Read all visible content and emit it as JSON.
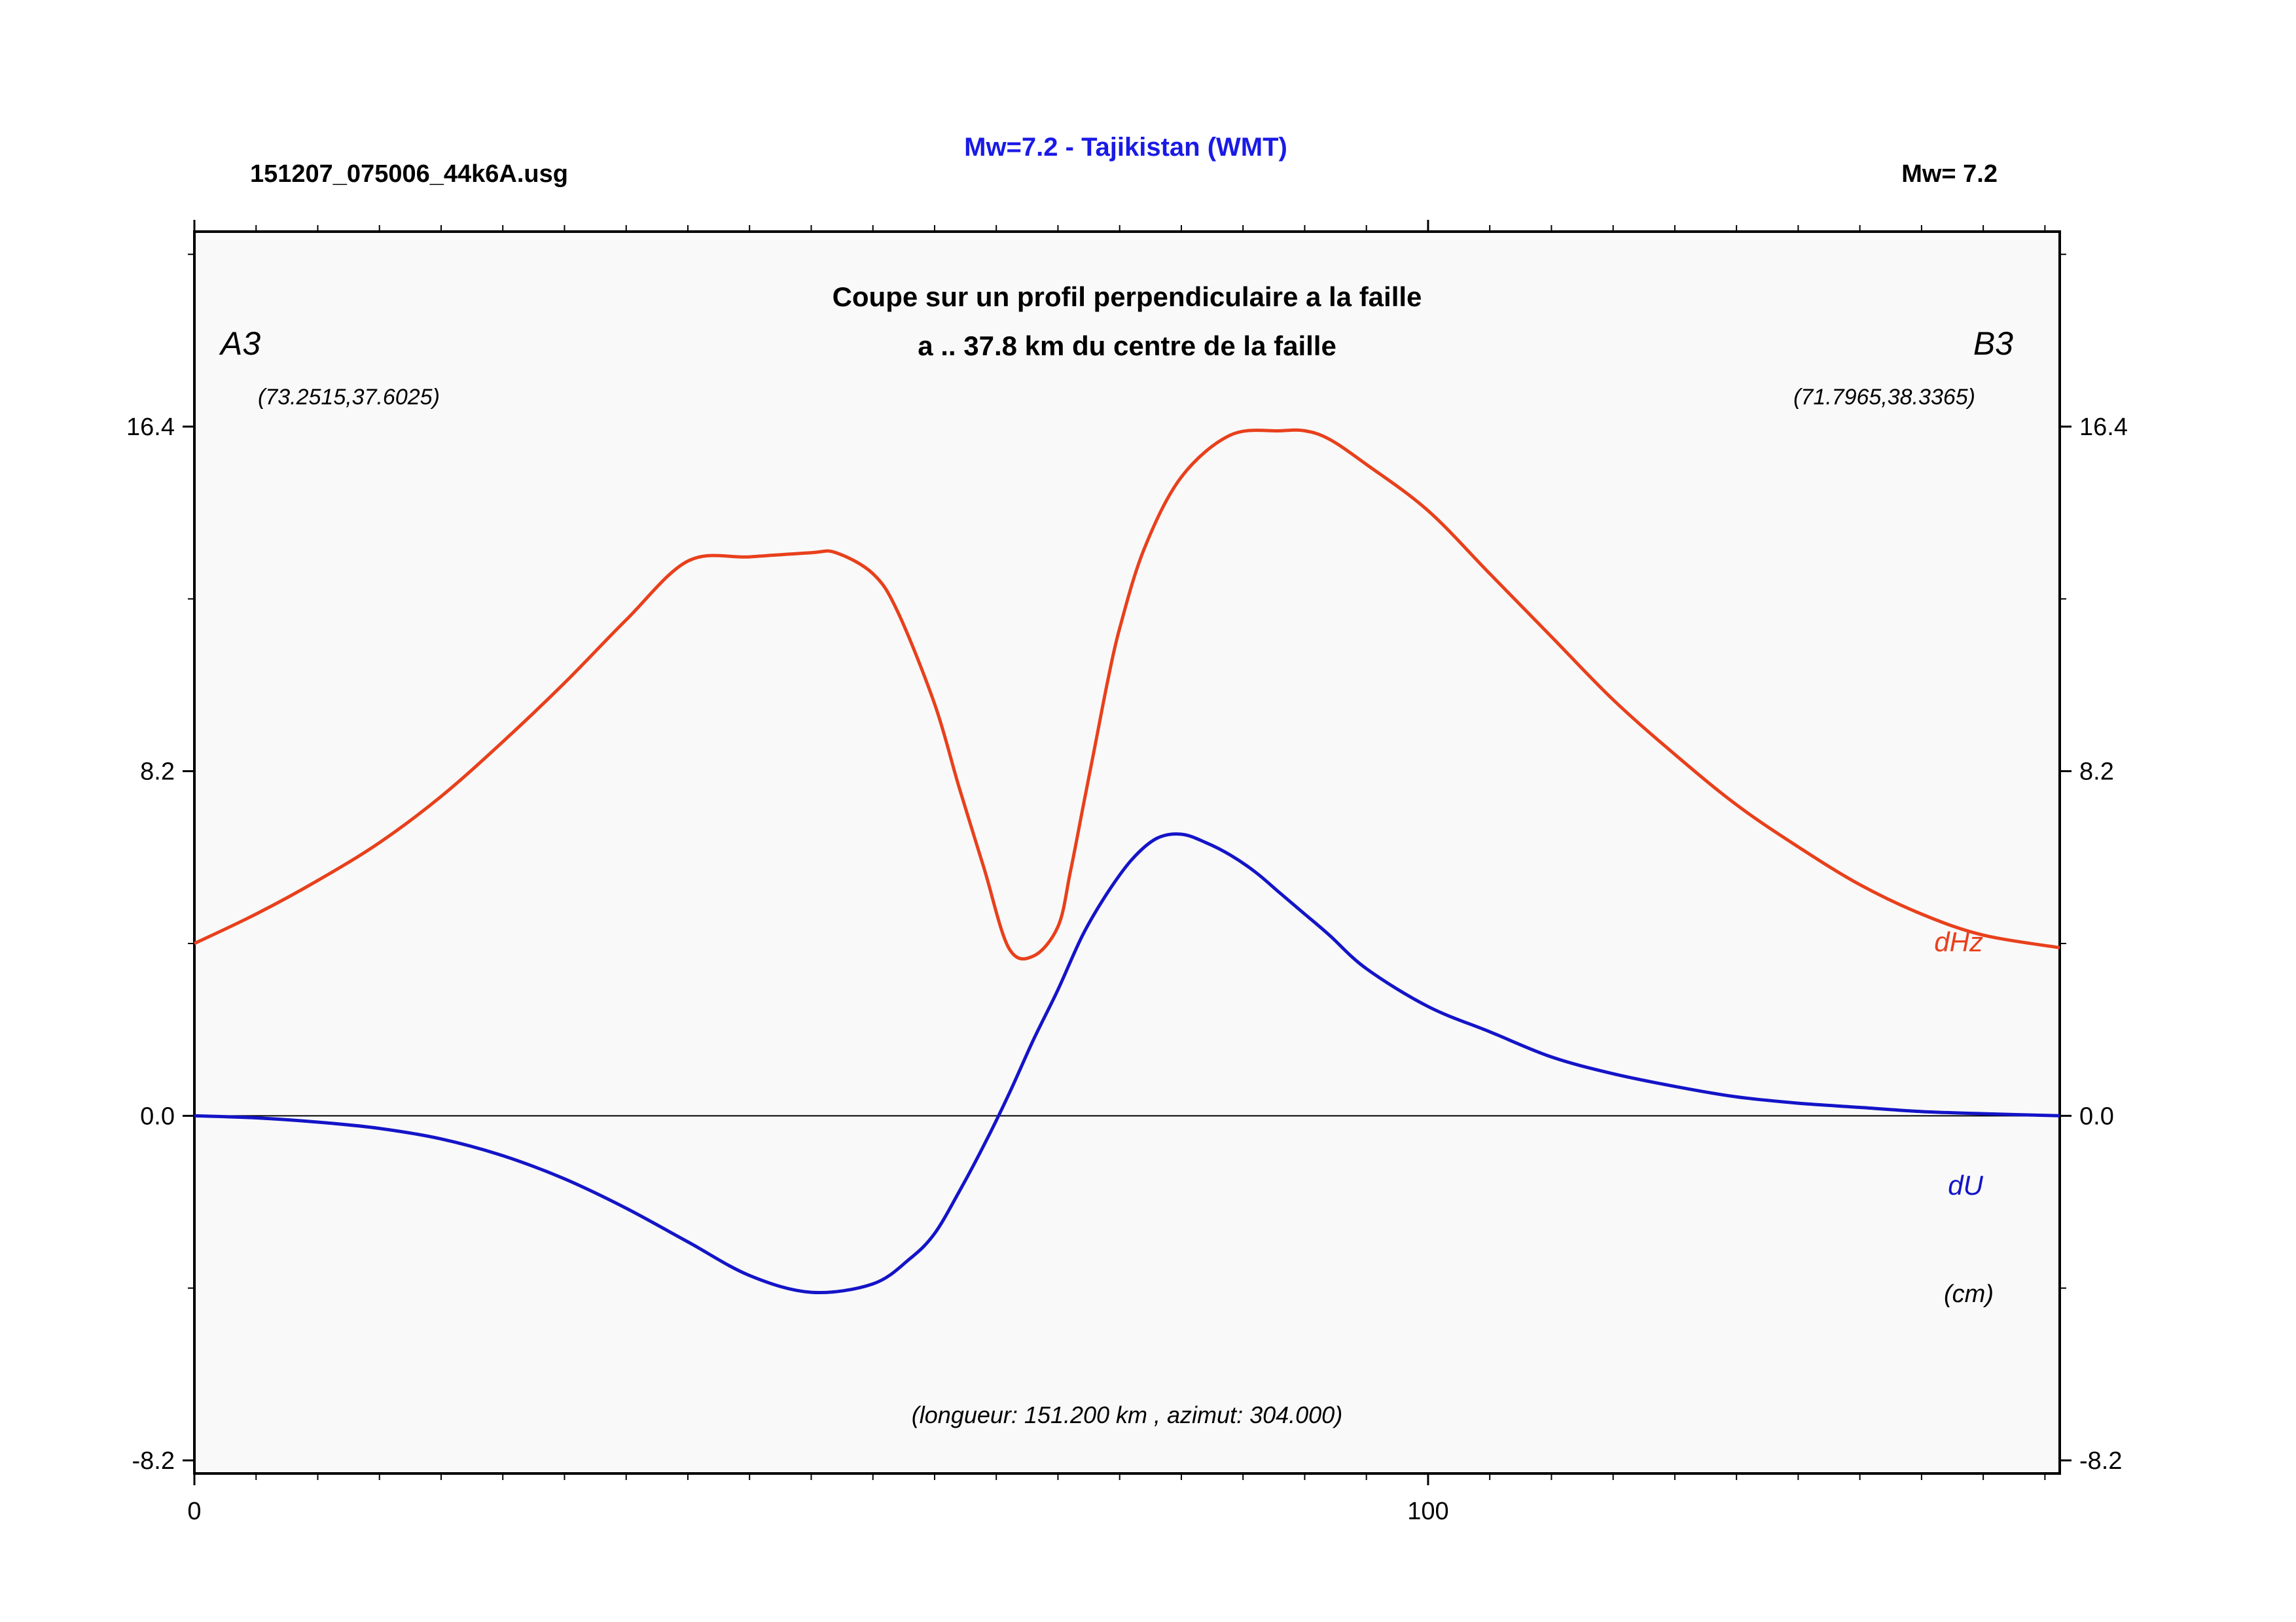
{
  "header": {
    "main_title": "Mw=7.2 - Tajikistan (WMT)",
    "file_name": "151207_075006_44k6A.usg",
    "magnitude": "Mw= 7.2"
  },
  "colors": {
    "dHz": "#e8401c",
    "dU": "#1414c8",
    "title": "#1a1ae6",
    "plot_background": "#f9f9f9"
  },
  "chart_data": {
    "type": "line",
    "title": "Coupe sur un profil perpendiculaire a la faille",
    "subtitle": "a .. 37.8 km du centre de la faille",
    "start_label": "A3",
    "end_label": "B3",
    "start_coords": "(73.2515,37.6025)",
    "end_coords": "(71.7965,38.3365)",
    "profile_info": "(longueur: 151.200 km , azimut: 304.000)",
    "unit": "(cm)",
    "xlim": [
      0,
      151.2
    ],
    "ylim": [
      -8.2,
      20.6
    ],
    "x_ticks": [
      0,
      100
    ],
    "y_ticks": [
      16.4,
      8.2,
      0.0,
      -8.2
    ],
    "y_tick_labels": [
      "16.4",
      "8.2",
      "0.0",
      "-8.2"
    ],
    "x_tick_labels": [
      "0",
      "100"
    ],
    "zero_line": true,
    "grid": false,
    "series": [
      {
        "name": "dHz",
        "x": [
          0,
          5,
          10,
          15,
          20,
          25,
          30,
          35,
          40,
          45,
          50,
          52,
          55,
          57,
          60,
          62,
          64,
          66,
          68,
          70,
          71,
          72,
          73,
          74,
          75,
          77,
          80,
          84,
          88,
          90,
          92,
          95,
          100,
          105,
          110,
          115,
          120,
          125,
          130,
          135,
          140,
          145,
          151.2
        ],
        "y": [
          4.1,
          4.8,
          5.6,
          6.5,
          7.6,
          8.9,
          10.3,
          11.8,
          13.2,
          13.3,
          13.4,
          13.4,
          12.9,
          12.0,
          9.8,
          7.8,
          5.9,
          4.0,
          3.8,
          4.5,
          5.8,
          7.3,
          8.8,
          10.3,
          11.6,
          13.5,
          15.2,
          16.2,
          16.3,
          16.3,
          16.1,
          15.5,
          14.4,
          12.9,
          11.4,
          9.9,
          8.6,
          7.4,
          6.4,
          5.5,
          4.8,
          4.3,
          4.0
        ]
      },
      {
        "name": "dU",
        "x": [
          0,
          5,
          10,
          15,
          20,
          25,
          30,
          35,
          40,
          45,
          50,
          55,
          58,
          60,
          62,
          64,
          66,
          68,
          70,
          72,
          74,
          76,
          78,
          80,
          82,
          84,
          86,
          88,
          90,
          92,
          95,
          100,
          105,
          110,
          115,
          120,
          125,
          130,
          135,
          140,
          145,
          151.2
        ],
        "y": [
          0.0,
          -0.05,
          -0.15,
          -0.3,
          -0.55,
          -0.95,
          -1.5,
          -2.2,
          -3.0,
          -3.8,
          -4.2,
          -4.0,
          -3.4,
          -2.8,
          -1.8,
          -0.7,
          0.5,
          1.8,
          3.0,
          4.3,
          5.3,
          6.1,
          6.6,
          6.7,
          6.5,
          6.2,
          5.8,
          5.3,
          4.8,
          4.3,
          3.5,
          2.6,
          2.0,
          1.4,
          1.0,
          0.7,
          0.45,
          0.3,
          0.2,
          0.1,
          0.05,
          0.0
        ]
      }
    ],
    "series_labels": [
      "dHz",
      "dU"
    ]
  }
}
